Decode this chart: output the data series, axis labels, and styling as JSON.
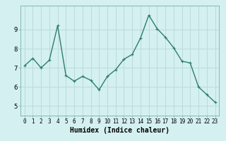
{
  "x": [
    0,
    1,
    2,
    3,
    4,
    5,
    6,
    7,
    8,
    9,
    10,
    11,
    12,
    13,
    14,
    15,
    16,
    17,
    18,
    19,
    20,
    21,
    22,
    23
  ],
  "y": [
    7.1,
    7.5,
    7.0,
    7.4,
    9.2,
    6.6,
    6.3,
    6.55,
    6.35,
    5.85,
    6.55,
    6.9,
    7.45,
    7.7,
    8.55,
    9.75,
    9.05,
    8.6,
    8.05,
    7.35,
    7.25,
    6.0,
    5.6,
    5.2
  ],
  "line_color": "#2e7d6e",
  "marker": "+",
  "marker_size": 3,
  "bg_color": "#d4f0f0",
  "grid_color": "#b8d8d8",
  "xlabel": "Humidex (Indice chaleur)",
  "ylim": [
    4.5,
    10.25
  ],
  "xlim": [
    -0.5,
    23.5
  ],
  "yticks": [
    5,
    6,
    7,
    8,
    9
  ],
  "xticks": [
    0,
    1,
    2,
    3,
    4,
    5,
    6,
    7,
    8,
    9,
    10,
    11,
    12,
    13,
    14,
    15,
    16,
    17,
    18,
    19,
    20,
    21,
    22,
    23
  ],
  "line_width": 1.0,
  "spine_color": "#7aaeae"
}
